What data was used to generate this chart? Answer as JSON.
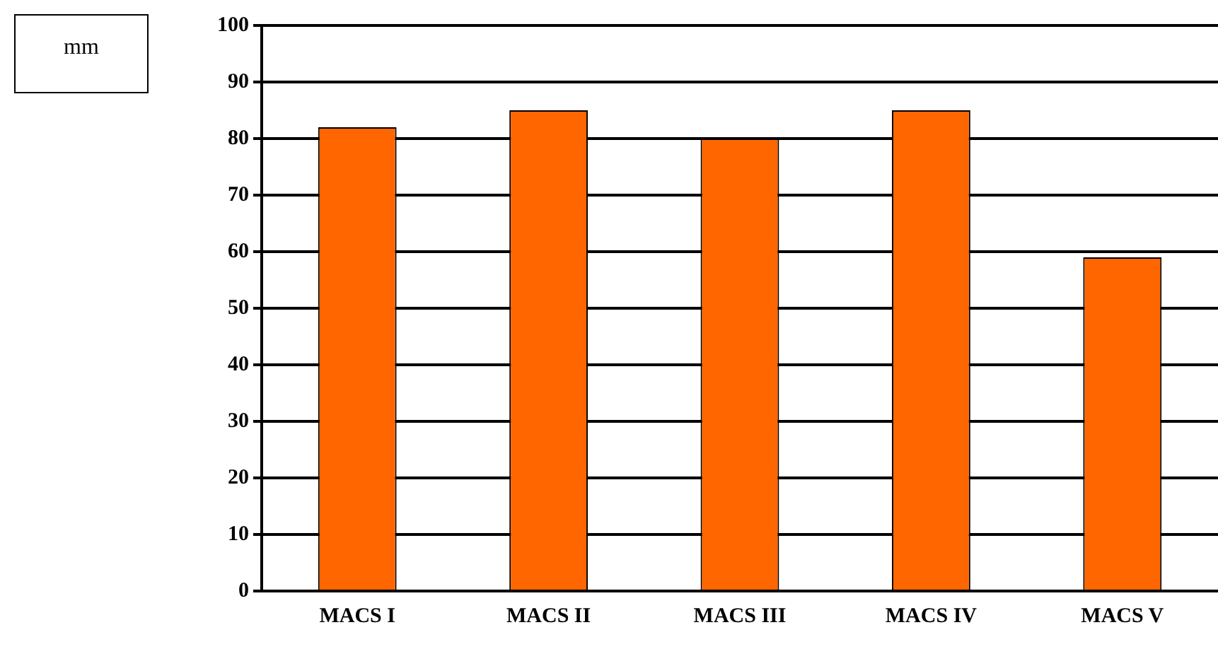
{
  "chart_data": {
    "type": "bar",
    "annotations": [
      "mm"
    ],
    "categories": [
      "MACS I",
      "MACS II",
      "MACS III",
      "MACS IV",
      "MACS V"
    ],
    "values": [
      82,
      85,
      80,
      85,
      59
    ],
    "color": "#ff6600",
    "ylim": [
      0,
      100
    ],
    "yticks": [
      0,
      10,
      20,
      30,
      40,
      50,
      60,
      70,
      80,
      90,
      100
    ],
    "grid": "y",
    "legend": false
  }
}
